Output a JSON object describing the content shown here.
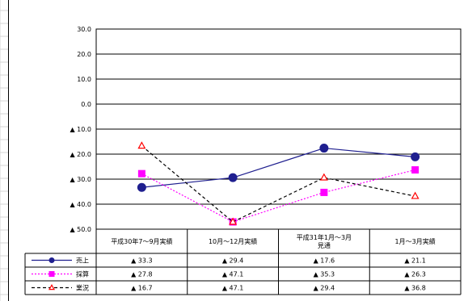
{
  "chart_data": {
    "type": "line",
    "title": "",
    "xlabel": "",
    "ylabel": "",
    "ylim": [
      -50,
      30
    ],
    "yticks": [
      30,
      20,
      10,
      0,
      -10,
      -20,
      -30,
      -40,
      -50
    ],
    "ytick_labels": [
      "30.0",
      "20.0",
      "10.0",
      "0.0",
      "▲ 10.0",
      "▲ 20.0",
      "▲ 30.0",
      "▲ 40.0",
      "▲ 50.0"
    ],
    "grid": true,
    "legend": "data-table",
    "categories": [
      [
        "平成30年7～9月実績"
      ],
      [
        "10月～12月実績"
      ],
      [
        "平成31年1月～3月",
        "見通"
      ],
      [
        "1月～3月実績"
      ]
    ],
    "series": [
      {
        "name": "売上",
        "values": [
          -33.3,
          -29.4,
          -17.6,
          -21.1
        ],
        "labels": [
          "▲ 33.3",
          "▲ 29.4",
          "▲ 17.6",
          "▲ 21.1"
        ],
        "color": "#1f1f8f",
        "dash": "solid",
        "marker": "circle"
      },
      {
        "name": "採算",
        "values": [
          -27.8,
          -47.1,
          -35.3,
          -26.3
        ],
        "labels": [
          "▲ 27.8",
          "▲ 47.1",
          "▲ 35.3",
          "▲ 26.3"
        ],
        "color": "#ff00ff",
        "dash": "dotted",
        "marker": "square"
      },
      {
        "name": "業況",
        "values": [
          -16.7,
          -47.1,
          -29.4,
          -36.8
        ],
        "labels": [
          "▲ 16.7",
          "▲ 47.1",
          "▲ 29.4",
          "▲ 36.8"
        ],
        "color": "#000000",
        "dash": "dashed",
        "marker": "triangle"
      }
    ]
  },
  "colors": {
    "sheet_grid": "#d4d4d4",
    "marker_triangle_stroke": "#ff0000"
  }
}
